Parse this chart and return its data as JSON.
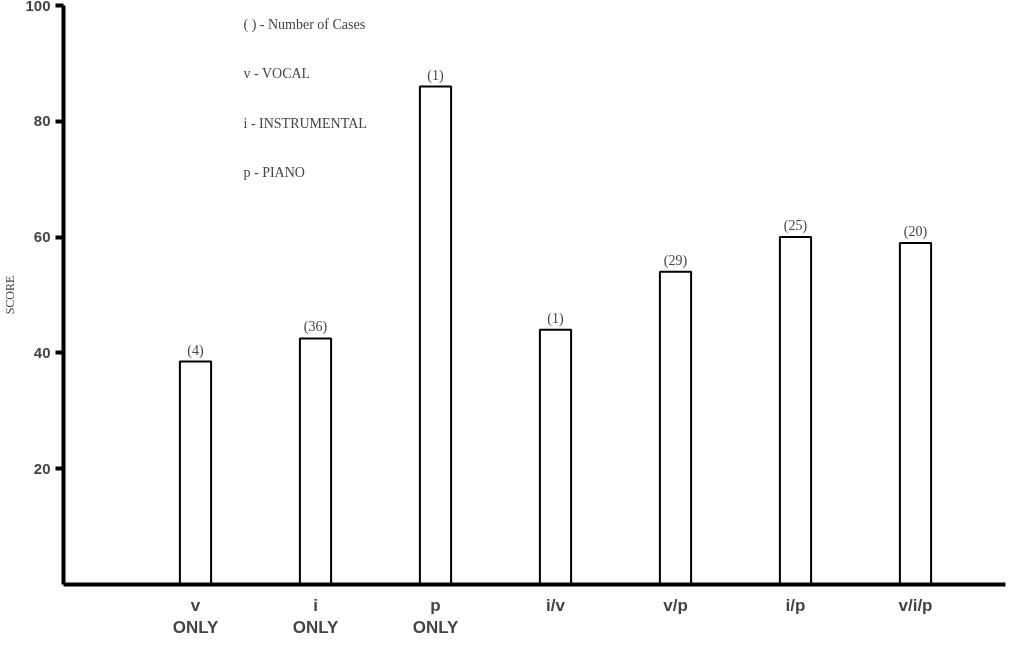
{
  "chart_data": {
    "type": "bar",
    "ylabel": "SCORE",
    "categories": [
      "v\nONLY",
      "i\nONLY",
      "p\nONLY",
      "i/v",
      "v/p",
      "i/p",
      "v/i/p"
    ],
    "values": [
      38.5,
      42.5,
      86,
      44,
      54,
      60,
      59
    ],
    "color": "#ffffff",
    "ylim": [
      0,
      100
    ],
    "yticks": [
      20,
      40,
      60,
      80,
      100
    ],
    "annotations": [
      "( ) - Number of Cases",
      "v - VOCAL",
      "i - INSTRUMENTAL",
      "p - PIANO",
      {
        "text": "(4)",
        "x": "v\nONLY",
        "y": 38.5
      },
      {
        "text": "(36)",
        "x": "i\nONLY",
        "y": 42.5
      },
      {
        "text": "(1)",
        "x": "p\nONLY",
        "y": 86
      },
      {
        "text": "(1)",
        "x": "i/v",
        "y": 44
      },
      {
        "text": "(29)",
        "x": "v/p",
        "y": 54
      },
      {
        "text": "(25)",
        "x": "i/p",
        "y": 60
      },
      {
        "text": "(20)",
        "x": "v/i/p",
        "y": 59
      }
    ],
    "grid": false
  }
}
